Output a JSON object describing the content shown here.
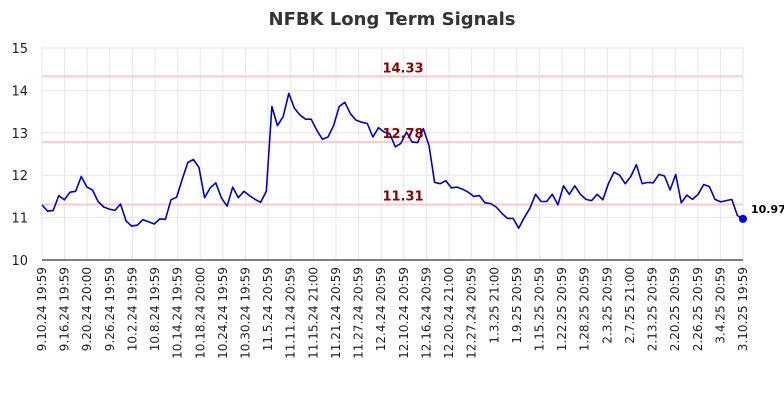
{
  "chart_data": {
    "type": "line",
    "title": "NFBK Long Term Signals",
    "xlabel": "",
    "ylabel": "",
    "ylim": [
      10,
      15
    ],
    "yticks": [
      10,
      11,
      12,
      13,
      14,
      15
    ],
    "grid": true,
    "colors": {
      "line": "#0000cc",
      "ref_line": "#ffc8c8",
      "ref_label": "#8b0000",
      "grid": "#e6e6e6",
      "last_point": "#0000ee"
    },
    "xticks": [
      "9.10.24 19:59",
      "9.16.24 19:59",
      "9.20.24 20:00",
      "9.26.24 19:59",
      "10.2.24 19:59",
      "10.8.24 19:59",
      "10.14.24 19:59",
      "10.18.24 20:00",
      "10.24.24 19:59",
      "10.30.24 19:59",
      "11.5.24 20:59",
      "11.11.24 20:59",
      "11.15.24 21:00",
      "11.21.24 20:59",
      "11.27.24 20:59",
      "12.4.24 20:59",
      "12.10.24 20:59",
      "12.16.24 20:59",
      "12.20.24 21:00",
      "12.27.24 20:59",
      "1.3.25 21:00",
      "1.9.25 20:59",
      "1.15.25 20:59",
      "1.22.25 20:59",
      "1.28.25 20:59",
      "2.3.25 20:59",
      "2.7.25 21:00",
      "2.13.25 20:59",
      "2.20.25 20:59",
      "2.26.25 20:59",
      "3.4.25 20:59",
      "3.10.25 19:59"
    ],
    "reference_lines": [
      {
        "value": 14.33,
        "label": "14.33"
      },
      {
        "value": 12.78,
        "label": "12.78"
      },
      {
        "value": 11.31,
        "label": "11.31"
      }
    ],
    "last_value_label": "10.97",
    "series": [
      {
        "values": [
          11.3,
          11.15,
          11.17,
          11.52,
          11.42,
          11.6,
          11.62,
          11.97,
          11.72,
          11.65,
          11.38,
          11.25,
          11.2,
          11.17,
          11.32,
          10.92,
          10.8,
          10.82,
          10.95,
          10.9,
          10.85,
          10.97,
          10.96,
          11.42,
          11.48,
          11.9,
          12.3,
          12.37,
          12.18,
          11.47,
          11.7,
          11.82,
          11.46,
          11.27,
          11.72,
          11.47,
          11.62,
          11.52,
          11.43,
          11.36,
          11.62,
          13.62,
          13.17,
          13.38,
          13.93,
          13.58,
          13.42,
          13.32,
          13.32,
          13.06,
          12.85,
          12.9,
          13.17,
          13.62,
          13.72,
          13.45,
          13.3,
          13.25,
          13.22,
          12.9,
          13.12,
          13.02,
          12.98,
          12.67,
          12.75,
          13.02,
          12.78,
          12.77,
          13.1,
          12.7,
          11.83,
          11.8,
          11.87,
          11.7,
          11.72,
          11.67,
          11.6,
          11.5,
          11.52,
          11.35,
          11.33,
          11.25,
          11.1,
          10.98,
          10.98,
          10.75,
          11.0,
          11.22,
          11.55,
          11.38,
          11.38,
          11.55,
          11.3,
          11.75,
          11.55,
          11.75,
          11.55,
          11.43,
          11.4,
          11.55,
          11.42,
          11.8,
          12.07,
          12.0,
          11.8,
          11.97,
          12.25,
          11.8,
          11.83,
          11.82,
          12.02,
          11.98,
          11.65,
          12.02,
          11.35,
          11.53,
          11.43,
          11.55,
          11.78,
          11.73,
          11.43,
          11.37,
          11.4,
          11.43,
          11.05,
          10.97
        ]
      }
    ]
  }
}
